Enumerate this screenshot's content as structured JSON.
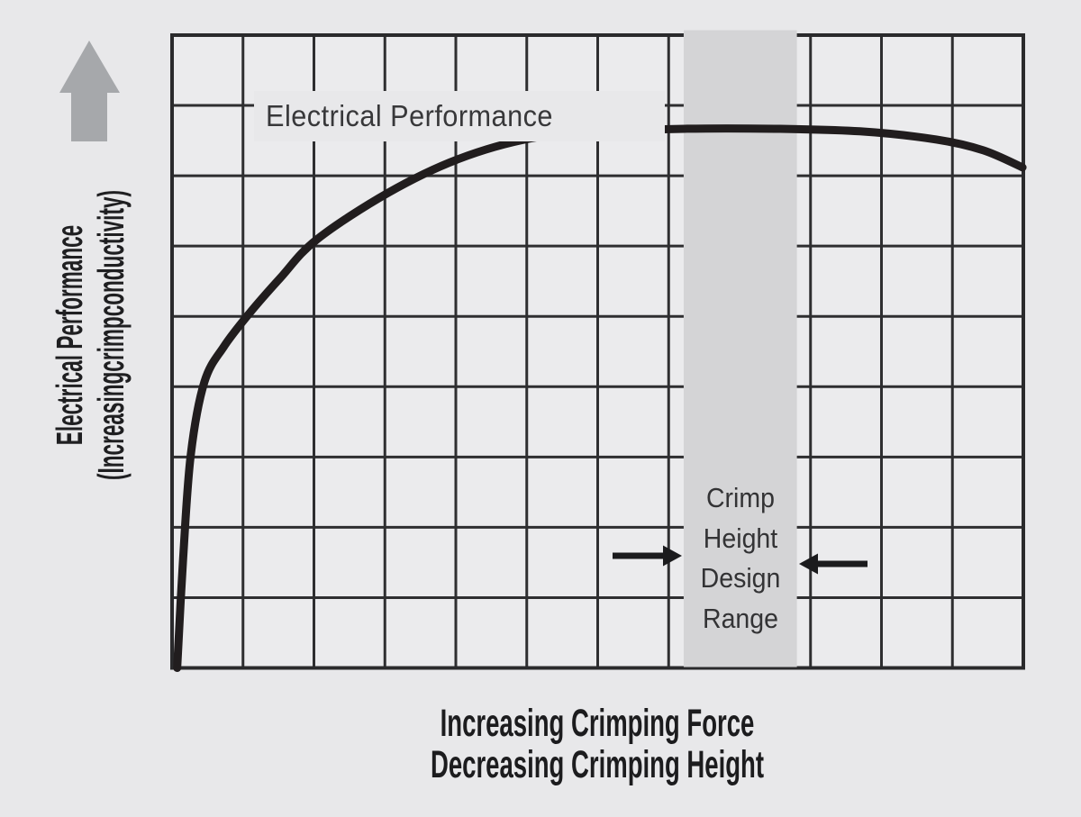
{
  "figure": {
    "y_axis_label_line1": "Electrical Performance",
    "y_axis_label_line2": "(Increasingcrimpconductivity)",
    "x_axis_label_line1": "Increasing Crimping Force",
    "x_axis_label_line2": "Decreasing Crimping Height",
    "curve_label": "Electrical Performance",
    "band_label_lines": [
      "Crimp",
      "Height",
      "Design",
      "Range"
    ]
  },
  "colors": {
    "page_bg": "#e8e8ea",
    "plot_bg": "#ebebed",
    "grid_line": "#2e2e30",
    "plot_border": "#2a2a2c",
    "band_fill": "#d4d4d6",
    "curve": "#211d1e",
    "black_arrow": "#1b1b1d",
    "gray_arrow": "#a6a8ab",
    "text_dark": "#1f1f21",
    "text_soft": "#38383a"
  },
  "chart_data": {
    "type": "line",
    "title": "",
    "xlabel": "Increasing Crimping Force / Decreasing Crimping Height",
    "ylabel": "Electrical Performance (Increasingcrimpconductivity)",
    "x_axis_numeric": false,
    "y_axis_numeric": false,
    "axis_ranges_note": "conceptual chart, no numeric ticks; values normalized 0-1",
    "grid": {
      "cols": 12,
      "rows": 9,
      "grid_on": true
    },
    "series": [
      {
        "name": "Electrical Performance",
        "points_norm": [
          [
            0.006,
            0.0
          ],
          [
            0.013,
            0.173
          ],
          [
            0.022,
            0.337
          ],
          [
            0.038,
            0.452
          ],
          [
            0.061,
            0.508
          ],
          [
            0.09,
            0.559
          ],
          [
            0.127,
            0.616
          ],
          [
            0.17,
            0.677
          ],
          [
            0.254,
            0.751
          ],
          [
            0.336,
            0.804
          ],
          [
            0.422,
            0.837
          ],
          [
            0.507,
            0.847
          ],
          [
            0.602,
            0.852
          ],
          [
            0.708,
            0.852
          ],
          [
            0.808,
            0.848
          ],
          [
            0.898,
            0.835
          ],
          [
            0.953,
            0.818
          ],
          [
            0.999,
            0.791
          ]
        ]
      }
    ],
    "band": {
      "label": "Crimp Height Design Range",
      "x_norm_range": [
        0.601,
        0.734
      ]
    },
    "annotations": [
      {
        "name": "curve-label",
        "text": "Electrical Performance"
      },
      {
        "name": "up-arrow",
        "meaning": "increasing electrical performance"
      },
      {
        "name": "inward-arrows",
        "meaning": "point to crimp height design range band"
      }
    ]
  }
}
